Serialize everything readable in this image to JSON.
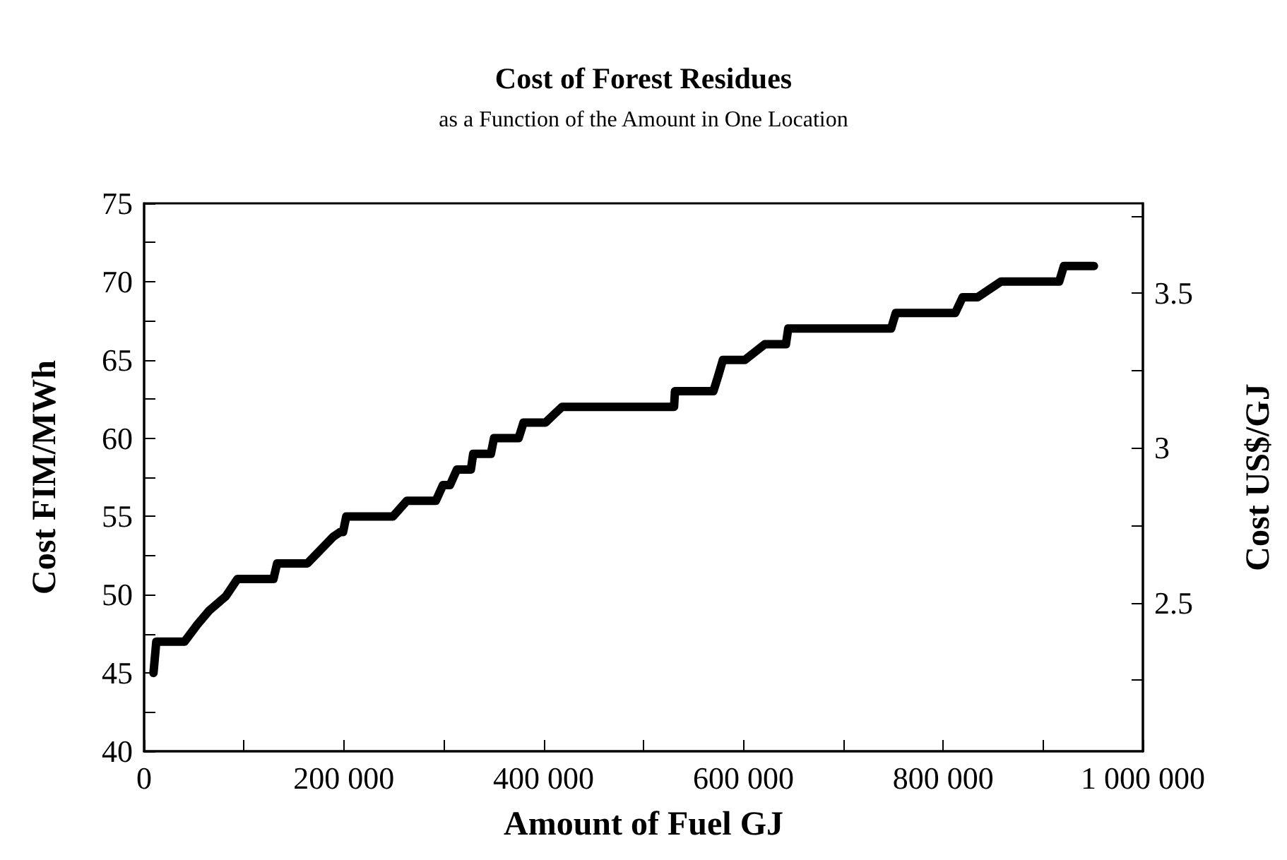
{
  "chart_data": {
    "type": "line",
    "title": "Cost of Forest Residues",
    "subtitle": "as a Function of the Amount in One Location",
    "xlabel": "Amount of Fuel GJ",
    "ylabel": "Cost FIM/MWh",
    "y2label": "Cost US$/GJ",
    "x": [
      9400,
      12200,
      40400,
      53400,
      65400,
      81800,
      93400,
      129500,
      133200,
      163500,
      189300,
      196300,
      199200,
      202400,
      249100,
      263100,
      292100,
      299200,
      306200,
      313200,
      327200,
      329500,
      347200,
      350300,
      375000,
      379900,
      401900,
      418400,
      530600,
      531500,
      570000,
      574900,
      579500,
      601500,
      621500,
      642600,
      644900,
      747900,
      752600,
      812100,
      819500,
      834500,
      857900,
      916200,
      920900,
      951000
    ],
    "series": [
      {
        "color": "#000000",
        "values": [
          45,
          47,
          47,
          48.1,
          49,
          49.9,
          51,
          51,
          52,
          52,
          53.7,
          54,
          54,
          55,
          55,
          56,
          56,
          57,
          57,
          58,
          58,
          59,
          59,
          60,
          60,
          61,
          61,
          62,
          62,
          63,
          63,
          64,
          65,
          65,
          66,
          66,
          67,
          67,
          68,
          68,
          69,
          69,
          70,
          70,
          71,
          71
        ]
      }
    ],
    "xlim": [
      0,
      1000000
    ],
    "xticks": [
      {
        "value": 0,
        "label": "0"
      },
      {
        "value": 100000,
        "label": null
      },
      {
        "value": 200000,
        "label": "200 000"
      },
      {
        "value": 300000,
        "label": null
      },
      {
        "value": 400000,
        "label": "400 000"
      },
      {
        "value": 500000,
        "label": null
      },
      {
        "value": 600000,
        "label": "600 000"
      },
      {
        "value": 700000,
        "label": null
      },
      {
        "value": 800000,
        "label": "800 000"
      },
      {
        "value": 900000,
        "label": null
      },
      {
        "value": 1000000,
        "label": "1 000 000"
      }
    ],
    "ylim": [
      40,
      75
    ],
    "yticks": [
      40,
      {
        "value": 42.5,
        "label": null
      },
      45,
      {
        "value": 47.5,
        "label": null
      },
      50,
      {
        "value": 52.5,
        "label": null
      },
      55,
      {
        "value": 57.5,
        "label": null
      },
      60,
      {
        "value": 62.5,
        "label": null
      },
      65,
      {
        "value": 67.5,
        "label": null
      },
      70,
      {
        "value": 72.5,
        "label": null
      },
      75
    ],
    "y2lim": [
      2.02,
      3.79
    ],
    "y2ticks": [
      {
        "value": 2.25,
        "label": null
      },
      2.5,
      {
        "value": 2.75,
        "label": null
      },
      3,
      {
        "value": 3.25,
        "label": null
      },
      3.5,
      {
        "value": 3.75,
        "label": null
      }
    ],
    "grid": false,
    "marker": "none",
    "line_style": "solid"
  }
}
